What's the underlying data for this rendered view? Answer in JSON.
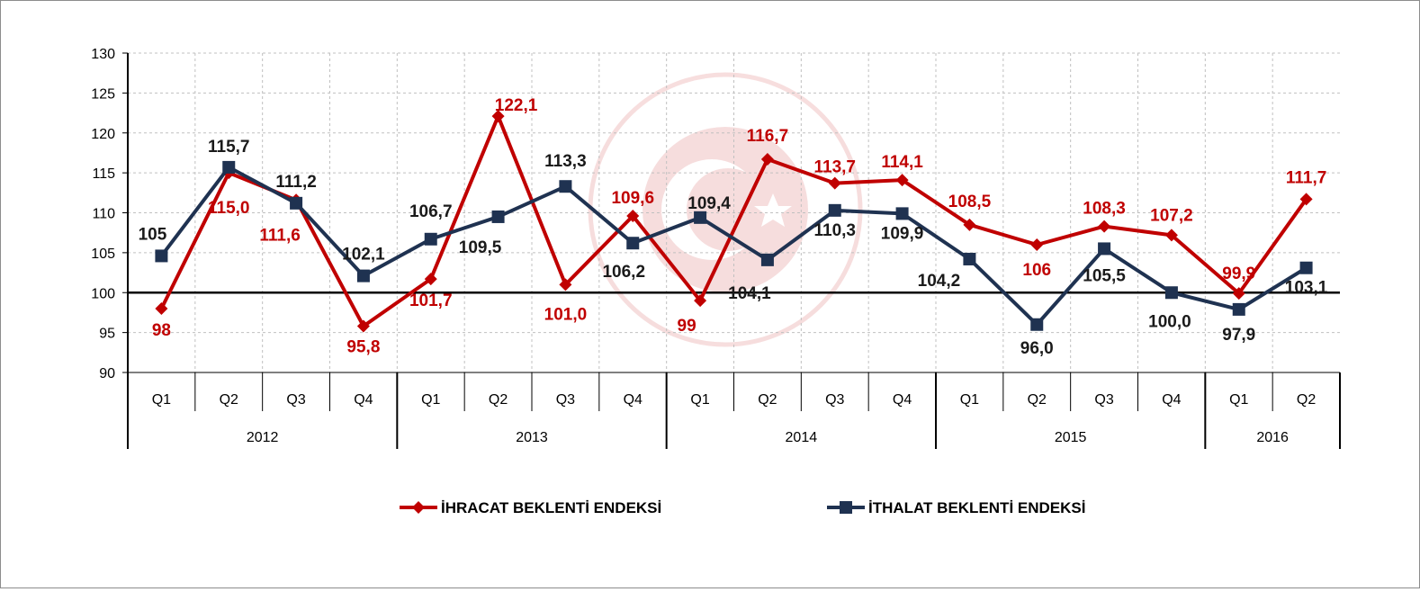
{
  "chart_data": {
    "type": "line",
    "title": "",
    "xlabel": "",
    "ylabel": "",
    "ylim": [
      90,
      130
    ],
    "yticks": [
      90,
      95,
      100,
      105,
      110,
      115,
      120,
      125,
      130
    ],
    "grid": true,
    "legend_position": "bottom",
    "years": [
      {
        "label": "2012",
        "count": 4
      },
      {
        "label": "2013",
        "count": 4
      },
      {
        "label": "2014",
        "count": 4
      },
      {
        "label": "2015",
        "count": 4
      },
      {
        "label": "2016",
        "count": 2
      }
    ],
    "categories": [
      "Q1",
      "Q2",
      "Q3",
      "Q4",
      "Q1",
      "Q2",
      "Q3",
      "Q4",
      "Q1",
      "Q2",
      "Q3",
      "Q4",
      "Q1",
      "Q2",
      "Q3",
      "Q4",
      "Q1",
      "Q2"
    ],
    "series": [
      {
        "name": "İHRACAT BEKLENTİ ENDEKSİ",
        "color": "#c00000",
        "marker": "diamond",
        "values": [
          98,
          115.0,
          111.6,
          95.8,
          101.7,
          122.1,
          101.0,
          109.6,
          99,
          116.7,
          113.7,
          114.1,
          108.5,
          106,
          108.3,
          107.2,
          99.9,
          111.7
        ],
        "labels": [
          "98",
          "115,0",
          "111,6",
          "95,8",
          "101,7",
          "122,1",
          "101,0",
          "109,6",
          "99",
          "116,7",
          "113,7",
          "114,1",
          "108,5",
          "106",
          "108,3",
          "107,2",
          "99,9",
          "111,7"
        ]
      },
      {
        "name": "İTHALAT BEKLENTİ ENDEKSİ",
        "color": "#1f3251",
        "marker": "square",
        "values": [
          104.6,
          115.7,
          111.2,
          102.1,
          106.7,
          109.5,
          113.3,
          106.2,
          109.4,
          104.1,
          110.3,
          109.9,
          104.2,
          96.0,
          105.5,
          100.0,
          97.9,
          103.1
        ],
        "labels": [
          "105",
          "115,7",
          "111,2",
          "102,1",
          "106,7",
          "109,5",
          "113,3",
          "106,2",
          "109,4",
          "104,1",
          "110,3",
          "109,9",
          "104,2",
          "96,0",
          "105,5",
          "100,0",
          "97,9",
          "103,1"
        ]
      }
    ]
  }
}
